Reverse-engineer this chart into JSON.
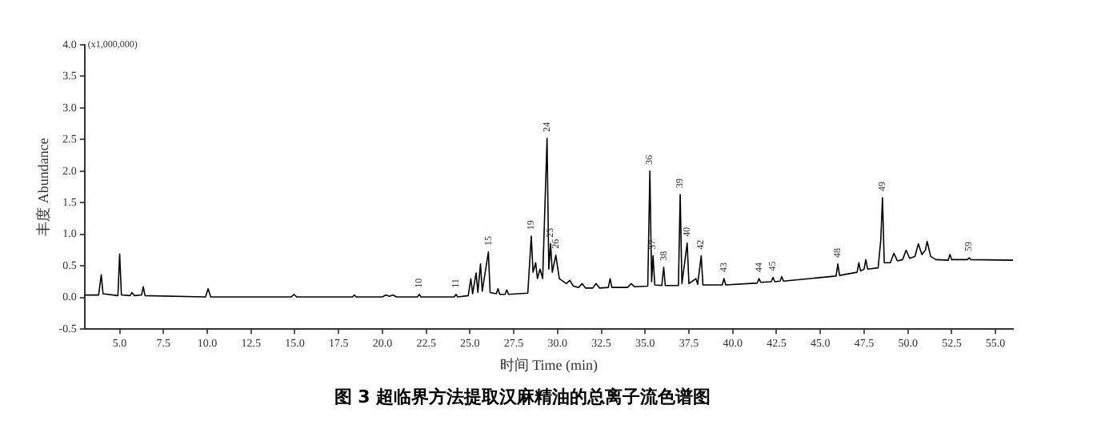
{
  "chart_data": {
    "type": "line",
    "title": "图 3 超临界方法提取汉麻精油的总离子流色谱图",
    "xlabel": "时间 Time (min)",
    "ylabel": "丰度 Abundance",
    "xlim": [
      3.0,
      56.0
    ],
    "ylim": [
      -0.5,
      4.0
    ],
    "xticks": [
      {
        "value": 5,
        "label": "5.0"
      },
      7.5,
      {
        "value": 10,
        "label": "10.0"
      },
      12.5,
      {
        "value": 15,
        "label": "15.0"
      },
      17.5,
      {
        "value": 20,
        "label": "20.0"
      },
      22.5,
      {
        "value": 25,
        "label": "25.0"
      },
      27.5,
      {
        "value": 30,
        "label": "30.0"
      },
      32.5,
      {
        "value": 35,
        "label": "35.0"
      },
      37.5,
      {
        "value": 40,
        "label": "40.0"
      },
      42.5,
      {
        "value": 45,
        "label": "45.0"
      },
      47.5,
      {
        "value": 50,
        "label": "50.0"
      },
      52.5,
      {
        "value": 55,
        "label": "55.0"
      }
    ],
    "yticks": [
      -0.5,
      {
        "value": 0,
        "label": "0.0"
      },
      0.5,
      {
        "value": 1,
        "label": "1.0"
      },
      1.5,
      {
        "value": 2,
        "label": "2.0"
      },
      2.5,
      {
        "value": 3,
        "label": "3.0"
      },
      3.5,
      {
        "value": 4,
        "label": "4.0"
      }
    ],
    "grid": false,
    "legend": false,
    "marker": "none",
    "line_style": "solid",
    "series": [
      {
        "color": "#000000",
        "x": [
          3.0,
          3.8,
          3.95,
          4.05,
          4.9,
          5.0,
          5.1,
          5.6,
          5.7,
          5.85,
          6.25,
          6.35,
          6.45,
          9.9,
          10.05,
          10.2,
          14.8,
          14.95,
          15.1,
          18.3,
          18.4,
          18.5,
          20.0,
          20.2,
          20.4,
          20.6,
          20.8,
          22.0,
          22.1,
          22.2,
          24.1,
          24.2,
          24.3,
          24.9,
          25.05,
          25.15,
          25.35,
          25.45,
          25.6,
          25.7,
          26.05,
          26.15,
          26.5,
          26.6,
          26.7,
          27.0,
          27.1,
          27.2,
          28.3,
          28.5,
          28.6,
          28.75,
          28.85,
          29.0,
          29.15,
          29.4,
          29.5,
          29.6,
          29.7,
          29.9,
          30.1,
          30.5,
          30.7,
          30.9,
          31.2,
          31.4,
          31.6,
          32.0,
          32.2,
          32.4,
          32.9,
          33.0,
          33.1,
          34.0,
          34.2,
          34.4,
          35.15,
          35.27,
          35.37,
          35.45,
          35.55,
          35.95,
          36.06,
          36.15,
          36.9,
          37.0,
          37.1,
          37.4,
          37.5,
          37.9,
          38.0,
          38.2,
          38.3,
          39.4,
          39.5,
          39.6,
          41.4,
          41.5,
          41.6,
          42.2,
          42.3,
          42.4,
          42.7,
          42.8,
          42.9,
          45.9,
          46.0,
          46.1,
          47.1,
          47.2,
          47.3,
          47.5,
          47.6,
          47.7,
          48.3,
          48.45,
          48.55,
          48.65,
          49.0,
          49.2,
          49.4,
          49.7,
          49.9,
          50.1,
          50.4,
          50.6,
          50.8,
          51.0,
          51.1,
          51.3,
          51.6,
          52.3,
          52.4,
          52.5,
          53.4,
          53.5,
          53.6,
          56.0
        ],
        "values": [
          0.04,
          0.04,
          0.36,
          0.06,
          0.03,
          0.69,
          0.04,
          0.03,
          0.08,
          0.03,
          0.04,
          0.17,
          0.03,
          0.01,
          0.14,
          0.01,
          0.01,
          0.05,
          0.01,
          0.01,
          0.04,
          0.01,
          0.01,
          0.04,
          0.02,
          0.04,
          0.01,
          0.01,
          0.05,
          0.01,
          0.01,
          0.05,
          0.01,
          0.03,
          0.3,
          0.06,
          0.39,
          0.08,
          0.53,
          0.1,
          0.72,
          0.08,
          0.06,
          0.14,
          0.05,
          0.05,
          0.12,
          0.05,
          0.07,
          0.97,
          0.4,
          0.55,
          0.3,
          0.45,
          0.3,
          2.52,
          0.45,
          0.85,
          0.4,
          0.67,
          0.3,
          0.22,
          0.27,
          0.18,
          0.16,
          0.22,
          0.15,
          0.15,
          0.22,
          0.15,
          0.16,
          0.3,
          0.16,
          0.16,
          0.22,
          0.17,
          0.18,
          2.0,
          0.25,
          0.66,
          0.2,
          0.19,
          0.48,
          0.19,
          0.19,
          1.63,
          0.22,
          0.86,
          0.22,
          0.3,
          0.21,
          0.66,
          0.2,
          0.2,
          0.3,
          0.2,
          0.23,
          0.3,
          0.24,
          0.25,
          0.32,
          0.25,
          0.26,
          0.33,
          0.26,
          0.34,
          0.53,
          0.35,
          0.4,
          0.55,
          0.42,
          0.45,
          0.6,
          0.45,
          0.47,
          0.9,
          1.58,
          0.55,
          0.55,
          0.7,
          0.58,
          0.6,
          0.75,
          0.62,
          0.65,
          0.85,
          0.68,
          0.75,
          0.89,
          0.65,
          0.6,
          0.59,
          0.68,
          0.6,
          0.6,
          0.63,
          0.6,
          0.59
        ]
      }
    ],
    "annotations": [
      "(x1,000,000)",
      {
        "text": "10",
        "x": 22.1,
        "y": 0.05
      },
      {
        "text": "11",
        "x": 24.2,
        "y": 0.05
      },
      {
        "text": "15",
        "x": 26.05,
        "y": 0.72
      },
      {
        "text": "19",
        "x": 28.5,
        "y": 0.97
      },
      {
        "text": "23",
        "x": 29.6,
        "y": 0.85
      },
      {
        "text": "24",
        "x": 29.4,
        "y": 2.52
      },
      {
        "text": "26",
        "x": 29.9,
        "y": 0.67
      },
      {
        "text": "36",
        "x": 35.27,
        "y": 2.0
      },
      {
        "text": "37",
        "x": 35.45,
        "y": 0.66
      },
      {
        "text": "38",
        "x": 36.06,
        "y": 0.48
      },
      {
        "text": "39",
        "x": 37.0,
        "y": 1.63
      },
      {
        "text": "40",
        "x": 37.4,
        "y": 0.86
      },
      {
        "text": "42",
        "x": 38.2,
        "y": 0.66
      },
      {
        "text": "43",
        "x": 39.5,
        "y": 0.3
      },
      {
        "text": "44",
        "x": 41.5,
        "y": 0.3
      },
      {
        "text": "45",
        "x": 42.3,
        "y": 0.32
      },
      {
        "text": "48",
        "x": 46.0,
        "y": 0.53
      },
      {
        "text": "49",
        "x": 48.55,
        "y": 1.58
      },
      {
        "text": "59",
        "x": 53.5,
        "y": 0.63
      }
    ]
  }
}
